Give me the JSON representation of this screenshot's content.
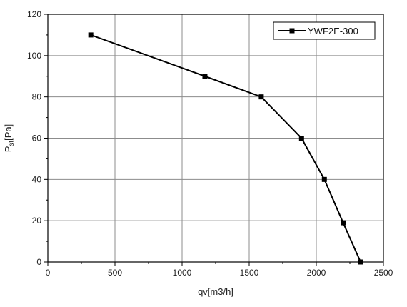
{
  "chart_data": {
    "type": "line",
    "xlabel": "qv[m3/h]",
    "ylabel_main": "P",
    "ylabel_sub": "st",
    "ylabel_rest": "[Pa]",
    "xlim": [
      0,
      2500
    ],
    "ylim": [
      0,
      120
    ],
    "x_ticks": [
      "0",
      "500",
      "1000",
      "1500",
      "2000",
      "2500"
    ],
    "y_ticks": [
      "0",
      "20",
      "40",
      "60",
      "80",
      "100",
      "120"
    ],
    "grid": true,
    "legend_position": "top-right",
    "series": [
      {
        "name": "YWF2E-300",
        "color": "#000000",
        "marker": "square",
        "x": [
          320,
          1170,
          1590,
          1890,
          2060,
          2200,
          2330
        ],
        "y": [
          110,
          90,
          80,
          60,
          40,
          19,
          0
        ]
      }
    ]
  }
}
